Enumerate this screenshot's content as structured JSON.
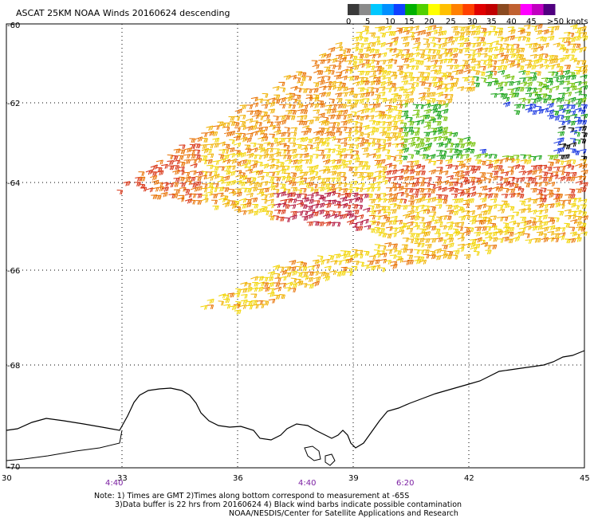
{
  "title": "ASCAT 25KM NOAA Winds 20160624 descending",
  "legend": {
    "labels": [
      "0",
      "5",
      "10",
      "15",
      "20",
      "25",
      "30",
      "35",
      "40",
      "45",
      ">50 knots"
    ],
    "colors": [
      "#3a3a3a",
      "#8a8a8a",
      "#00c8ff",
      "#0090ff",
      "#1040ff",
      "#00b000",
      "#50d000",
      "#ffff00",
      "#ffc000",
      "#ff8000",
      "#ff4000",
      "#e00000",
      "#c00000",
      "#8a4a20",
      "#c06030",
      "#ff00ff",
      "#c000c0",
      "#500080"
    ]
  },
  "axes": {
    "lat_labels": [
      "-60",
      "-62",
      "-64",
      "-66",
      "-68",
      "-70"
    ],
    "lon_labels": [
      "30",
      "33",
      "36",
      "39",
      "42",
      "45"
    ]
  },
  "times": [
    "4:40",
    "4:40",
    "6:20"
  ],
  "notes": [
    "Note: 1) Times are GMT 2)Times along bottom correspond to measurement at -65S",
    "3)Data buffer is 22 hrs from 20160624 4) Black wind barbs indicate possible contamination",
    "NOAA/NESDIS/Center for Satellite Applications and Research"
  ],
  "wind_colors": {
    "yellow": "#f2d400",
    "gold": "#f0b000",
    "orange": "#e87000",
    "red": "#d83010",
    "crimson": "#b0103a",
    "green": "#10a010",
    "lime": "#70c000",
    "blue": "#1030e0",
    "black": "#000000"
  }
}
